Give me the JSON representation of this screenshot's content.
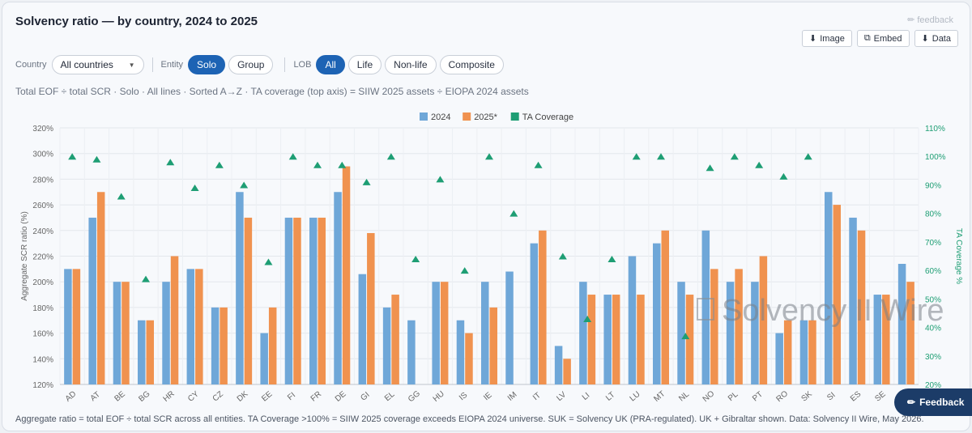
{
  "header": {
    "title": "Solvency ratio — by country, 2024 to 2025",
    "feedback_link": "feedback",
    "actions": {
      "image": "Image",
      "embed": "Embed",
      "data": "Data"
    }
  },
  "filters": {
    "country_label": "Country",
    "country_value": "All countries",
    "entity_label": "Entity",
    "entity_options": [
      "Solo",
      "Group"
    ],
    "entity_selected": "Solo",
    "lob_label": "LOB",
    "lob_options": [
      "All",
      "Life",
      "Non-life",
      "Composite"
    ],
    "lob_selected": "All"
  },
  "subtitle": "Total EOF ÷ total SCR · Solo · All lines · Sorted A→Z · TA coverage (top axis) = SIIW 2025 assets ÷ EIOPA 2024 assets",
  "footnote": "Aggregate ratio = total EOF ÷ total SCR across all entities. TA Coverage >100% = SIIW 2025 coverage exceeds EIOPA 2024 universe. SUK = Solvency UK (PRA-regulated). UK + Gibraltar shown. Data: Solvency II Wire, May 2026.",
  "feedback_button": "Feedback",
  "watermark": "Solvency II Wire",
  "colors": {
    "series_2024": "#6fa7d8",
    "series_2025": "#f0924f",
    "ta": "#1e9e74",
    "accent": "#1d63b4"
  },
  "chart_data": {
    "type": "bar",
    "ylabel": "Aggregate SCR ratio (%)",
    "y2label": "TA Coverage %",
    "ylim": [
      120,
      320
    ],
    "yticks": [
      "120%",
      "140%",
      "160%",
      "180%",
      "200%",
      "220%",
      "240%",
      "260%",
      "280%",
      "300%",
      "320%"
    ],
    "y2lim": [
      20,
      110
    ],
    "y2ticks": [
      "20%",
      "30%",
      "40%",
      "50%",
      "60%",
      "70%",
      "80%",
      "90%",
      "100%",
      "110%"
    ],
    "legend_position": "top-center",
    "grid": true,
    "categories": [
      "AD",
      "AT",
      "BE",
      "BG",
      "HR",
      "CY",
      "CZ",
      "DK",
      "EE",
      "FI",
      "FR",
      "DE",
      "GI",
      "EL",
      "GG",
      "HU",
      "IS",
      "IE",
      "IM",
      "IT",
      "LV",
      "LI",
      "LT",
      "LU",
      "MT",
      "NL",
      "NO",
      "PL",
      "PT",
      "RO",
      "SK",
      "SI",
      "ES",
      "SE",
      "SUK"
    ],
    "series": [
      {
        "name": "2024",
        "values": [
          210,
          250,
          200,
          170,
          200,
          210,
          180,
          270,
          160,
          250,
          250,
          270,
          206,
          180,
          170,
          200,
          170,
          200,
          208,
          230,
          150,
          200,
          190,
          220,
          230,
          200,
          240,
          200,
          200,
          160,
          170,
          270,
          250,
          190,
          214
        ]
      },
      {
        "name": "2025*",
        "values": [
          210,
          270,
          200,
          170,
          220,
          210,
          180,
          250,
          180,
          250,
          250,
          290,
          238,
          190,
          null,
          200,
          160,
          180,
          null,
          240,
          140,
          190,
          190,
          190,
          240,
          190,
          210,
          210,
          220,
          170,
          170,
          260,
          240,
          190,
          200
        ]
      },
      {
        "name": "TA Coverage",
        "values": [
          100,
          99,
          86,
          57,
          98,
          89,
          97,
          90,
          63,
          100,
          97,
          97,
          91,
          100,
          64,
          92,
          60,
          100,
          80,
          97,
          65,
          43,
          64,
          100,
          100,
          37,
          96,
          100,
          97,
          93,
          100,
          null,
          null,
          null,
          null
        ]
      }
    ]
  }
}
